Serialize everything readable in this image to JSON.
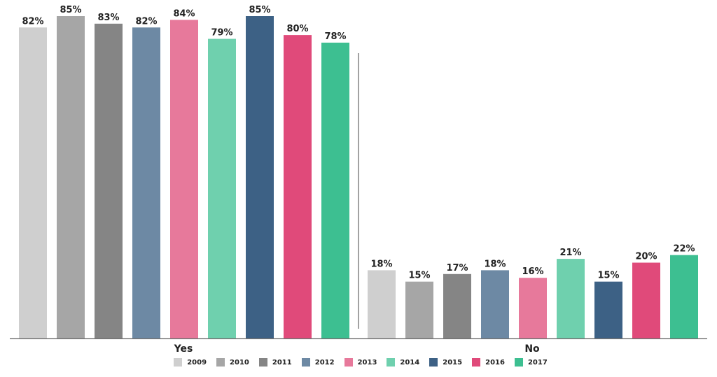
{
  "chart_data": {
    "type": "bar",
    "categories": [
      "Yes",
      "No"
    ],
    "series": [
      {
        "name": "2009",
        "color": "#cfcfcf",
        "values": [
          82,
          18
        ]
      },
      {
        "name": "2010",
        "color": "#a6a6a6",
        "values": [
          85,
          15
        ]
      },
      {
        "name": "2011",
        "color": "#858585",
        "values": [
          83,
          17
        ]
      },
      {
        "name": "2012",
        "color": "#6d89a4",
        "values": [
          82,
          18
        ]
      },
      {
        "name": "2013",
        "color": "#e7799b",
        "values": [
          84,
          16
        ]
      },
      {
        "name": "2014",
        "color": "#6fd0ae",
        "values": [
          79,
          21
        ]
      },
      {
        "name": "2015",
        "color": "#3d6185",
        "values": [
          85,
          15
        ]
      },
      {
        "name": "2016",
        "color": "#e04a7a",
        "values": [
          80,
          20
        ]
      },
      {
        "name": "2017",
        "color": "#3dbf91",
        "values": [
          78,
          22
        ]
      }
    ],
    "value_suffix": "%",
    "ylim": [
      0,
      85
    ],
    "grid": false,
    "legend_position": "bottom"
  }
}
